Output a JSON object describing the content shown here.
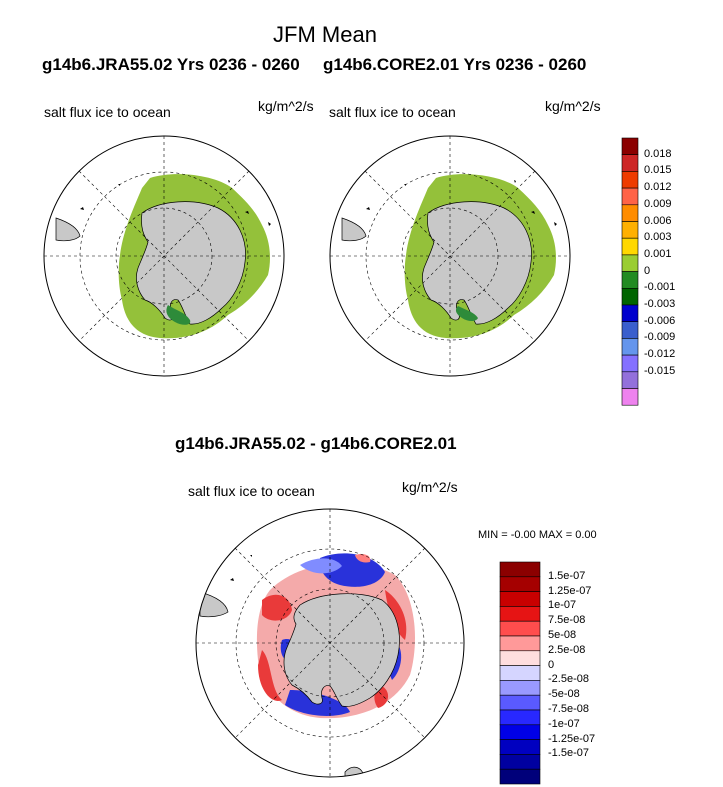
{
  "figure": {
    "title": "JFM Mean",
    "panel_left": {
      "title": "g14b6.JRA55.02  Yrs 0236 - 0260",
      "variable": "salt flux ice to ocean",
      "units": "kg/m^2/s"
    },
    "panel_right": {
      "title": "g14b6.CORE2.01  Yrs 0236 - 0260",
      "variable": "salt flux ice to ocean",
      "units": "kg/m^2/s"
    },
    "panel_diff": {
      "title": "g14b6.JRA55.02 - g14b6.CORE2.01",
      "variable": "salt flux ice to ocean",
      "units": "kg/m^2/s",
      "minmax": "MIN =  -0.00 MAX =   0.00"
    }
  },
  "colorbar_top": {
    "colors": [
      "#8b0000",
      "#cd2626",
      "#ee3b00",
      "#ff6347",
      "#ff8c00",
      "#ffb000",
      "#ffd800",
      "#9acd32",
      "#228b22",
      "#006400",
      "#0000cd",
      "#3a5fcd",
      "#6495ed",
      "#8470ff",
      "#9370db",
      "#ee82ee"
    ],
    "labels": [
      "0.018",
      "0.015",
      "0.012",
      "0.009",
      "0.006",
      "0.003",
      "0.001",
      "0",
      "-0.001",
      "-0.003",
      "-0.006",
      "-0.009",
      "-0.012",
      "-0.015"
    ]
  },
  "colorbar_bottom": {
    "colors": [
      "#8b0000",
      "#a50000",
      "#c80000",
      "#e61414",
      "#ff4d4d",
      "#ff9999",
      "#ffdede",
      "#d5d5ff",
      "#9999ff",
      "#5a5aff",
      "#2828ff",
      "#0000e6",
      "#0000c0",
      "#0000a0",
      "#00007a"
    ],
    "labels": [
      "1.5e-07",
      "1.25e-07",
      "1e-07",
      "7.5e-08",
      "5e-08",
      "2.5e-08",
      "0",
      "-2.5e-08",
      "-5e-08",
      "-7.5e-08",
      "-1e-07",
      "-1.25e-07",
      "-1.5e-07"
    ]
  },
  "map_colors": {
    "land": "#c8c8c8",
    "ice_flux": "#94c13a",
    "negative_flux": "#2e8b3a",
    "diff_red": "#e83030",
    "diff_blue": "#1e28d8"
  }
}
